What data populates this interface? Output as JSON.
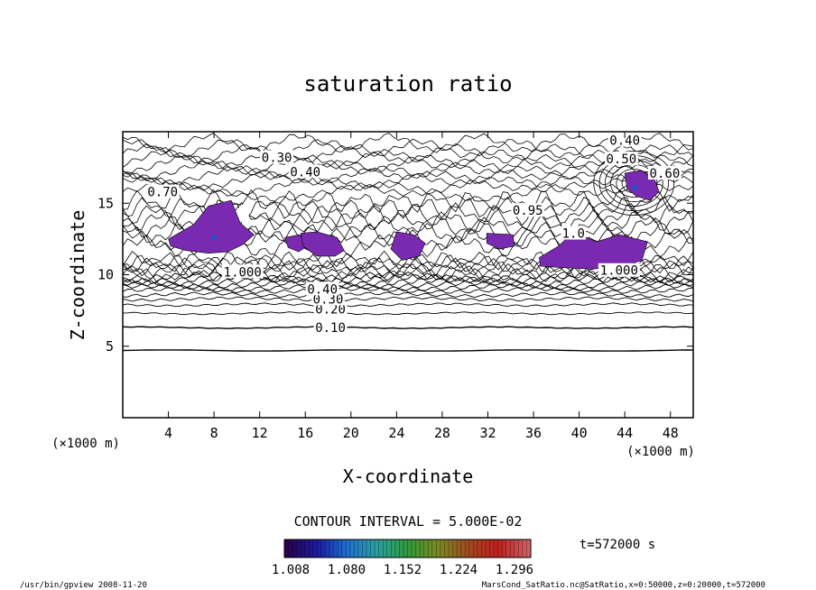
{
  "chart_data": {
    "type": "contour",
    "title": "saturation ratio",
    "xlabel": "X-coordinate",
    "ylabel": "Z-coordinate",
    "x_unit": "(×1000 m)",
    "y_unit": "(×1000 m)",
    "x_ticks": [
      4,
      8,
      12,
      16,
      20,
      24,
      28,
      32,
      36,
      40,
      44,
      48
    ],
    "y_ticks": [
      5,
      10,
      15
    ],
    "xlim": [
      0,
      50
    ],
    "ylim": [
      0,
      20
    ],
    "contour_interval_text": "CONTOUR INTERVAL = 5.000E-02",
    "contour_labels": [
      {
        "text": "0.10",
        "x": 18.2,
        "z": 6.3
      },
      {
        "text": "0.20",
        "x": 18.2,
        "z": 7.6
      },
      {
        "text": "0.30",
        "x": 18.0,
        "z": 8.3
      },
      {
        "text": "0.40",
        "x": 17.5,
        "z": 9.0
      },
      {
        "text": "0.30",
        "x": 13.5,
        "z": 18.2
      },
      {
        "text": "0.40",
        "x": 16.0,
        "z": 17.2
      },
      {
        "text": "0.70",
        "x": 3.5,
        "z": 15.8
      },
      {
        "text": "0.40",
        "x": 44.0,
        "z": 19.4
      },
      {
        "text": "0.50",
        "x": 43.7,
        "z": 18.1
      },
      {
        "text": "0.60",
        "x": 47.5,
        "z": 17.1
      },
      {
        "text": "1.000",
        "x": 43.5,
        "z": 10.3
      },
      {
        "text": "1.000",
        "x": 10.5,
        "z": 10.2
      },
      {
        "text": "0.95",
        "x": 35.5,
        "z": 14.5
      },
      {
        "text": "1.0",
        "x": 39.5,
        "z": 12.9
      }
    ],
    "colorbar": {
      "labels": [
        "1.008",
        "1.080",
        "1.152",
        "1.224",
        "1.296"
      ],
      "colors": [
        "#2a0050",
        "#1a1a9a",
        "#1f6fd0",
        "#2aa0a0",
        "#2f9a3a",
        "#7a8a20",
        "#a04a20",
        "#c02020",
        "#d06060"
      ]
    },
    "fill_color": "#7a2ab0",
    "time_label": "t=572000 s",
    "footer_left": "/usr/bin/gpview   2008-11-20",
    "footer_right": "MarsCond_SatRatio.nc@SatRatio,x=0:50000,z=0:20000,t=572000"
  }
}
